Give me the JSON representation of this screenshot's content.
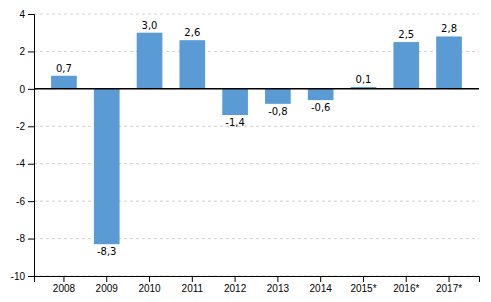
{
  "chart_data": {
    "type": "bar",
    "categories": [
      "2008",
      "2009",
      "2010",
      "2011",
      "2012",
      "2013",
      "2014",
      "2015*",
      "2016*",
      "2017*"
    ],
    "values": [
      0.7,
      -8.3,
      3.0,
      2.6,
      -1.4,
      -0.8,
      -0.6,
      0.1,
      2.5,
      2.8
    ],
    "value_labels": [
      "0,7",
      "-8,3",
      "3,0",
      "2,6",
      "-1,4",
      "-0,8",
      "-0,6",
      "0,1",
      "2,5",
      "2,8"
    ],
    "color": "#5b9bd5",
    "ylim": [
      -10,
      4
    ],
    "yticks": [
      -10,
      -8,
      -6,
      -4,
      -2,
      0,
      2,
      4
    ],
    "grid": true,
    "data_labels": true
  }
}
